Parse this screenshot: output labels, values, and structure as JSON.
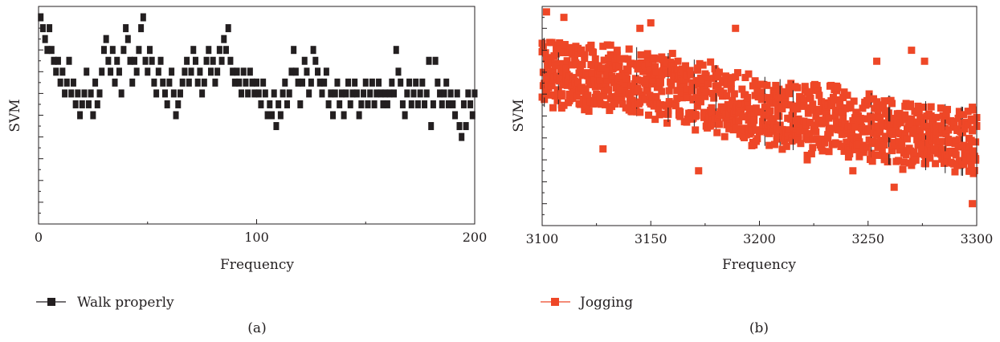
{
  "chart_data": [
    {
      "type": "scatter",
      "panel_label": "(a)",
      "xlabel": "Frequency",
      "ylabel": "SVM",
      "xlim": [
        0,
        200
      ],
      "ylim": [
        0,
        20
      ],
      "x_ticks": [
        0,
        100,
        200
      ],
      "y_tick_labels": "none",
      "grid": false,
      "legend_position": "bottom-left",
      "color": "#231f20",
      "series": [
        {
          "name": "Walk properly",
          "marker": "square",
          "points": [
            [
              1,
              19
            ],
            [
              2,
              18
            ],
            [
              3,
              17
            ],
            [
              4,
              16
            ],
            [
              5,
              18
            ],
            [
              6,
              16
            ],
            [
              7,
              15
            ],
            [
              8,
              14
            ],
            [
              9,
              15
            ],
            [
              10,
              13
            ],
            [
              11,
              14
            ],
            [
              12,
              12
            ],
            [
              13,
              13
            ],
            [
              14,
              15
            ],
            [
              15,
              12
            ],
            [
              16,
              13
            ],
            [
              17,
              11
            ],
            [
              18,
              12
            ],
            [
              19,
              10
            ],
            [
              20,
              11
            ],
            [
              21,
              12
            ],
            [
              22,
              14
            ],
            [
              23,
              11
            ],
            [
              24,
              12
            ],
            [
              25,
              10
            ],
            [
              26,
              13
            ],
            [
              27,
              11
            ],
            [
              28,
              12
            ],
            [
              29,
              14
            ],
            [
              30,
              16
            ],
            [
              31,
              17
            ],
            [
              32,
              15
            ],
            [
              33,
              14
            ],
            [
              34,
              16
            ],
            [
              35,
              13
            ],
            [
              36,
              15
            ],
            [
              37,
              14
            ],
            [
              38,
              12
            ],
            [
              39,
              16
            ],
            [
              40,
              18
            ],
            [
              41,
              17
            ],
            [
              42,
              15
            ],
            [
              43,
              13
            ],
            [
              44,
              15
            ],
            [
              45,
              14
            ],
            [
              46,
              16
            ],
            [
              47,
              18
            ],
            [
              48,
              19
            ],
            [
              49,
              15
            ],
            [
              50,
              14
            ],
            [
              51,
              16
            ],
            [
              52,
              15
            ],
            [
              53,
              13
            ],
            [
              54,
              12
            ],
            [
              55,
              14
            ],
            [
              56,
              15
            ],
            [
              57,
              13
            ],
            [
              58,
              12
            ],
            [
              59,
              11
            ],
            [
              60,
              13
            ],
            [
              61,
              14
            ],
            [
              62,
              12
            ],
            [
              63,
              10
            ],
            [
              64,
              11
            ],
            [
              65,
              12
            ],
            [
              66,
              13
            ],
            [
              67,
              14
            ],
            [
              68,
              15
            ],
            [
              69,
              13
            ],
            [
              70,
              14
            ],
            [
              71,
              16
            ],
            [
              72,
              15
            ],
            [
              73,
              13
            ],
            [
              74,
              14
            ],
            [
              75,
              12
            ],
            [
              76,
              13
            ],
            [
              77,
              15
            ],
            [
              78,
              16
            ],
            [
              79,
              14
            ],
            [
              80,
              15
            ],
            [
              81,
              13
            ],
            [
              82,
              14
            ],
            [
              83,
              16
            ],
            [
              84,
              15
            ],
            [
              85,
              17
            ],
            [
              86,
              16
            ],
            [
              87,
              18
            ],
            [
              88,
              15
            ],
            [
              89,
              14
            ],
            [
              90,
              13
            ],
            [
              91,
              14
            ],
            [
              92,
              13
            ],
            [
              93,
              12
            ],
            [
              94,
              14
            ],
            [
              95,
              13
            ],
            [
              96,
              12
            ],
            [
              97,
              14
            ],
            [
              98,
              13
            ],
            [
              99,
              12
            ],
            [
              100,
              13
            ],
            [
              101,
              12
            ],
            [
              102,
              11
            ],
            [
              103,
              13
            ],
            [
              104,
              12
            ],
            [
              105,
              10
            ],
            [
              106,
              11
            ],
            [
              107,
              10
            ],
            [
              108,
              12
            ],
            [
              109,
              9
            ],
            [
              110,
              11
            ],
            [
              111,
              10
            ],
            [
              112,
              12
            ],
            [
              113,
              13
            ],
            [
              114,
              11
            ],
            [
              115,
              12
            ],
            [
              116,
              14
            ],
            [
              117,
              16
            ],
            [
              118,
              14
            ],
            [
              119,
              13
            ],
            [
              120,
              11
            ],
            [
              121,
              13
            ],
            [
              122,
              15
            ],
            [
              123,
              14
            ],
            [
              124,
              12
            ],
            [
              125,
              13
            ],
            [
              126,
              16
            ],
            [
              127,
              15
            ],
            [
              128,
              14
            ],
            [
              129,
              13
            ],
            [
              130,
              12
            ],
            [
              131,
              13
            ],
            [
              132,
              14
            ],
            [
              133,
              11
            ],
            [
              134,
              12
            ],
            [
              135,
              10
            ],
            [
              136,
              12
            ],
            [
              137,
              13
            ],
            [
              138,
              11
            ],
            [
              139,
              12
            ],
            [
              140,
              10
            ],
            [
              141,
              12
            ],
            [
              142,
              13
            ],
            [
              143,
              11
            ],
            [
              144,
              12
            ],
            [
              145,
              13
            ],
            [
              146,
              12
            ],
            [
              147,
              10
            ],
            [
              148,
              11
            ],
            [
              149,
              12
            ],
            [
              150,
              13
            ],
            [
              151,
              11
            ],
            [
              152,
              12
            ],
            [
              153,
              13
            ],
            [
              154,
              11
            ],
            [
              155,
              12
            ],
            [
              156,
              13
            ],
            [
              157,
              12
            ],
            [
              158,
              11
            ],
            [
              159,
              12
            ],
            [
              160,
              11
            ],
            [
              161,
              12
            ],
            [
              162,
              13
            ],
            [
              163,
              12
            ],
            [
              164,
              16
            ],
            [
              165,
              14
            ],
            [
              166,
              13
            ],
            [
              167,
              11
            ],
            [
              168,
              10
            ],
            [
              169,
              12
            ],
            [
              170,
              13
            ],
            [
              171,
              11
            ],
            [
              172,
              12
            ],
            [
              173,
              13
            ],
            [
              174,
              11
            ],
            [
              175,
              12
            ],
            [
              176,
              13
            ],
            [
              177,
              11
            ],
            [
              178,
              12
            ],
            [
              179,
              15
            ],
            [
              180,
              9
            ],
            [
              181,
              11
            ],
            [
              182,
              15
            ],
            [
              183,
              13
            ],
            [
              184,
              12
            ],
            [
              185,
              11
            ],
            [
              186,
              12
            ],
            [
              187,
              13
            ],
            [
              188,
              11
            ],
            [
              189,
              12
            ],
            [
              190,
              11
            ],
            [
              191,
              10
            ],
            [
              192,
              12
            ],
            [
              193,
              9
            ],
            [
              194,
              8
            ],
            [
              195,
              11
            ],
            [
              196,
              9
            ],
            [
              197,
              12
            ],
            [
              198,
              11
            ],
            [
              199,
              10
            ],
            [
              200,
              12
            ]
          ]
        }
      ]
    },
    {
      "type": "scatter",
      "panel_label": "(b)",
      "xlabel": "Frequency",
      "ylabel": "SVM",
      "xlim": [
        3100,
        3300
      ],
      "ylim": [
        0,
        20
      ],
      "x_ticks": [
        3100,
        3150,
        3200,
        3250,
        3300
      ],
      "y_tick_labels": "none",
      "grid": false,
      "legend_position": "bottom-left",
      "color": "#ee4727",
      "series": [
        {
          "name": "Jogging",
          "marker": "square",
          "trend": {
            "x": [
              3100,
              3150,
              3200,
              3250,
              3300
            ],
            "center": [
              14,
              13,
              10.5,
              9,
              7.5
            ],
            "spread": 3.5
          },
          "outliers": [
            [
              3102,
              19.5
            ],
            [
              3110,
              19
            ],
            [
              3128,
              7
            ],
            [
              3145,
              18
            ],
            [
              3150,
              18.5
            ],
            [
              3172,
              5
            ],
            [
              3189,
              18
            ],
            [
              3222,
              6
            ],
            [
              3243,
              5
            ],
            [
              3254,
              15
            ],
            [
              3262,
              3.5
            ],
            [
              3270,
              16
            ],
            [
              3276,
              15
            ],
            [
              3298,
              2
            ]
          ]
        }
      ]
    }
  ]
}
